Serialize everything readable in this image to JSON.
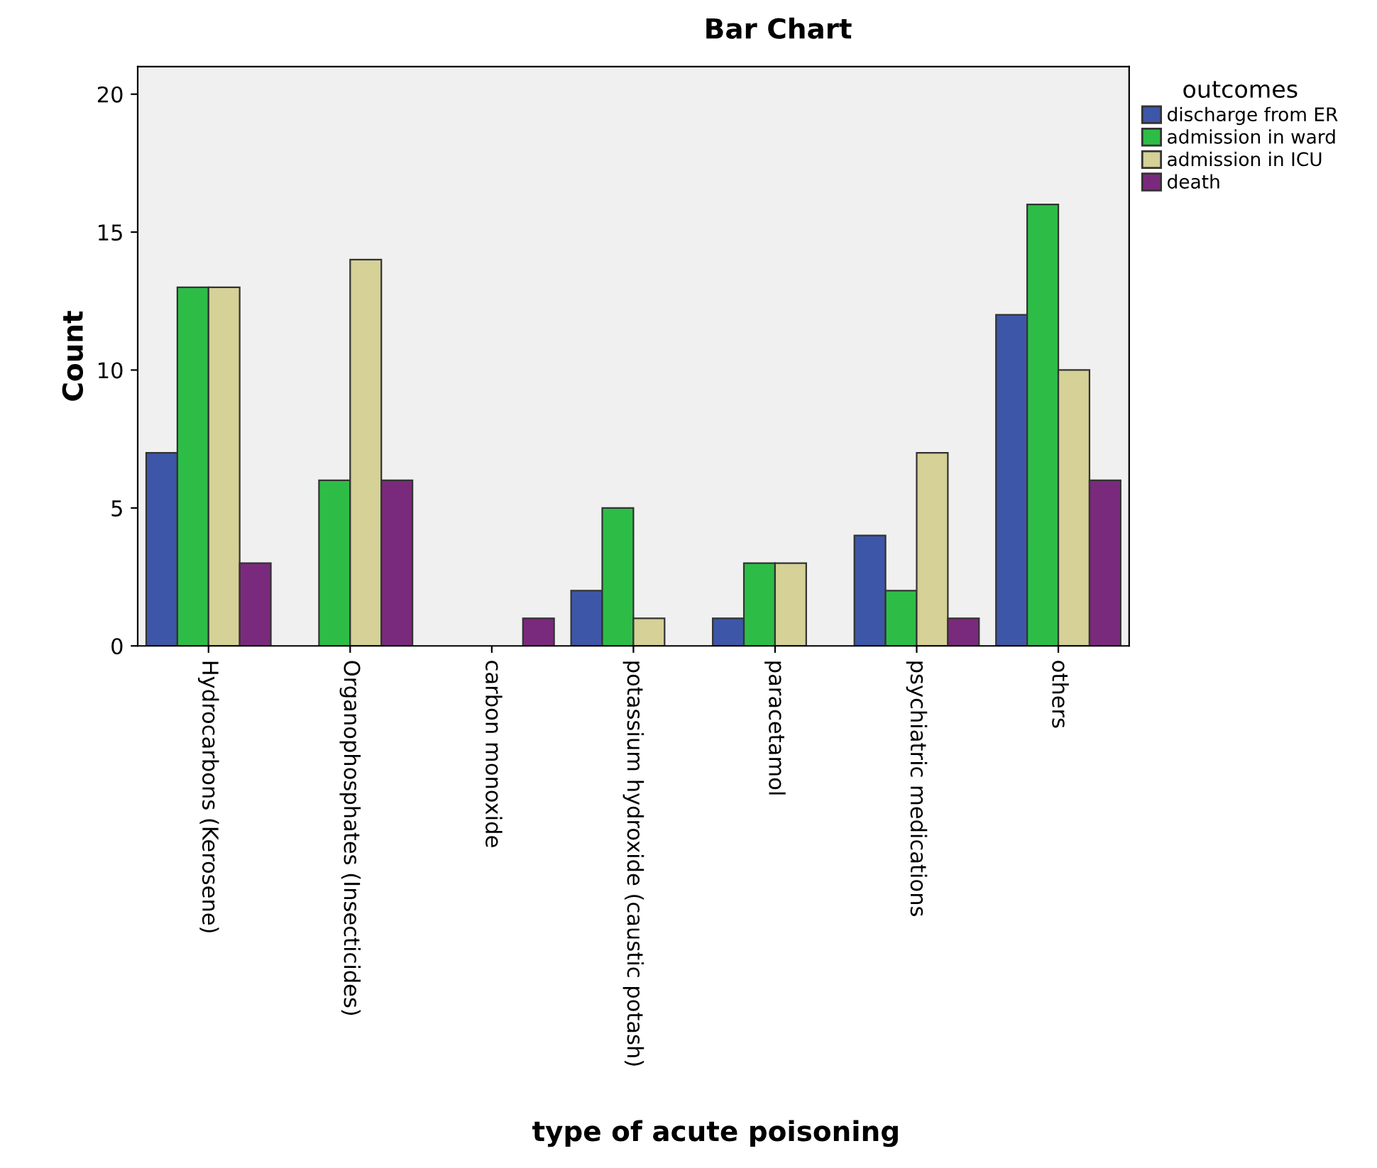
{
  "chart_data": {
    "type": "bar",
    "title": "Bar Chart",
    "xlabel": "type of acute poisoning",
    "ylabel": "Count",
    "legend_title": "outcomes",
    "categories": [
      "Hydrocarbons (Kerosene)",
      "Organophosphates (Insecticides)",
      "carbon monoxide",
      "potassium hydroxide (caustic potash)",
      "paracetamol",
      "psychiatric medications",
      "others"
    ],
    "series": [
      {
        "name": "discharge from ER",
        "color": "#3d56a8",
        "values": [
          7,
          null,
          null,
          2,
          1,
          4,
          12
        ]
      },
      {
        "name": "admission in ward",
        "color": "#2dbd47",
        "values": [
          13,
          6,
          null,
          5,
          3,
          2,
          16
        ]
      },
      {
        "name": "admission in ICU",
        "color": "#d5d197",
        "values": [
          13,
          14,
          null,
          1,
          3,
          7,
          10
        ]
      },
      {
        "name": "death",
        "color": "#7a2a7c",
        "values": [
          3,
          6,
          1,
          null,
          null,
          1,
          6
        ]
      }
    ],
    "ylim": [
      0,
      21
    ],
    "yticks": [
      0,
      5,
      10,
      15,
      20
    ],
    "grid": false,
    "legend": "top right"
  }
}
